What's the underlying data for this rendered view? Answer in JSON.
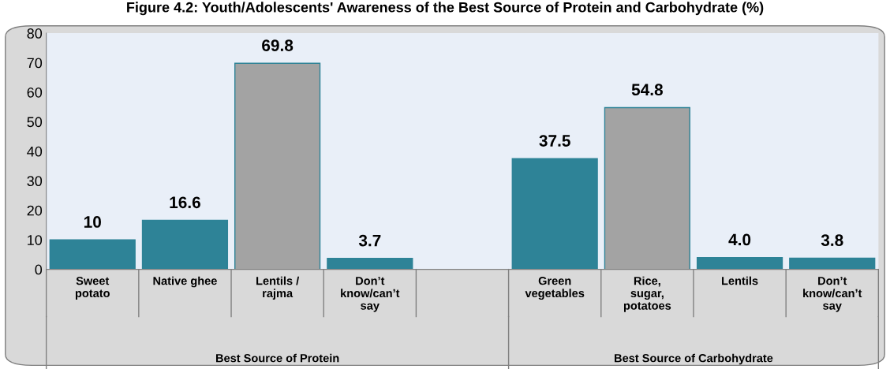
{
  "chart_data": {
    "type": "bar",
    "title": "Figure 4.2: Youth/Adolescents' Awareness of the Best Source of Protein and Carbohydrate (%)",
    "categories": [
      "Sweet potato",
      "Native ghee",
      "Lentils / rajma",
      "Don’t know/can’t say",
      null,
      "Green vegetables",
      "Rice, sugar, potatoes",
      "Lentils",
      "Don’t know/can’t say"
    ],
    "values": [
      10,
      16.6,
      69.8,
      3.7,
      null,
      37.5,
      54.8,
      4.0,
      3.8
    ],
    "colors": [
      "#2e8397",
      "#2e8397",
      "#a3a3a3",
      "#2e8397",
      "#2e8397",
      "#2e8397",
      "#a3a3a3",
      "#2e8397",
      "#2e8397"
    ],
    "value_labels": [
      "10",
      "16.6",
      "69.8",
      "3.7",
      null,
      "37.5",
      "54.8",
      "4.0",
      "3.8"
    ],
    "annotations": [
      "Best Source of Protein",
      "Best Source of Carbohydrate"
    ],
    "ylim": [
      0,
      80
    ],
    "yticks": [
      0,
      10,
      20,
      30,
      40,
      50,
      60,
      70,
      80
    ],
    "grid": false,
    "legend": false
  }
}
